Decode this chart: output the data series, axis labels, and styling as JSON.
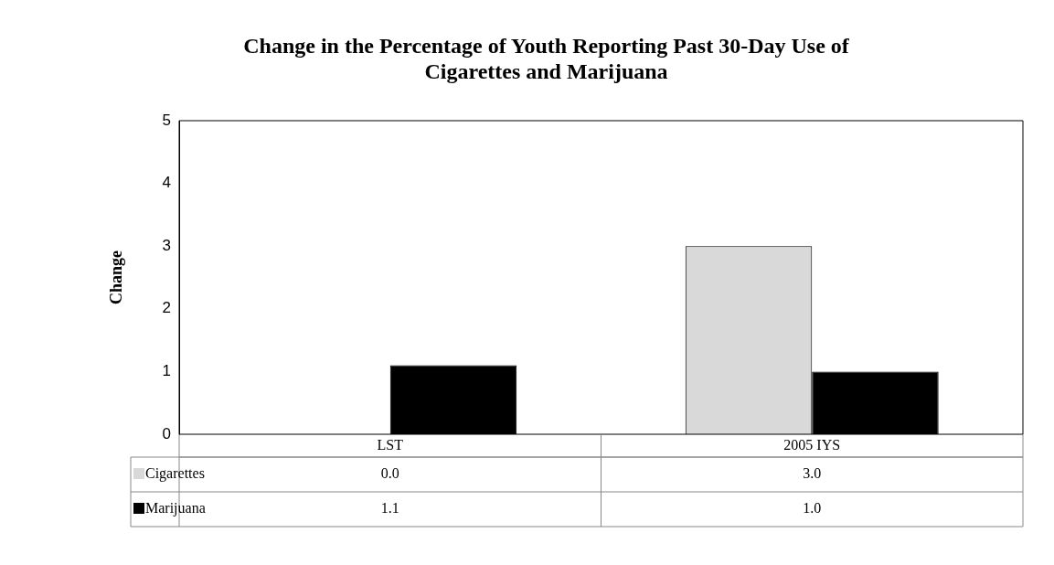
{
  "chart_data": {
    "type": "bar",
    "title": "Change in the Percentage of Youth Reporting Past 30-Day Use of Cigarettes and Marijuana",
    "ylabel": "Change",
    "categories": [
      "LST",
      "2005 IYS"
    ],
    "series": [
      {
        "name": "Cigarettes",
        "color": "#d9d9d9",
        "values": [
          0.0,
          3.0
        ],
        "value_labels": [
          "0.0",
          "3.0"
        ]
      },
      {
        "name": "Marijuana",
        "color": "#000000",
        "values": [
          1.1,
          1.0
        ],
        "value_labels": [
          "1.1",
          "1.0"
        ]
      }
    ],
    "ylim": [
      0,
      5
    ],
    "yticks": [
      0,
      1,
      2,
      3,
      4,
      5
    ],
    "grid": false,
    "legend": "bottom left"
  }
}
